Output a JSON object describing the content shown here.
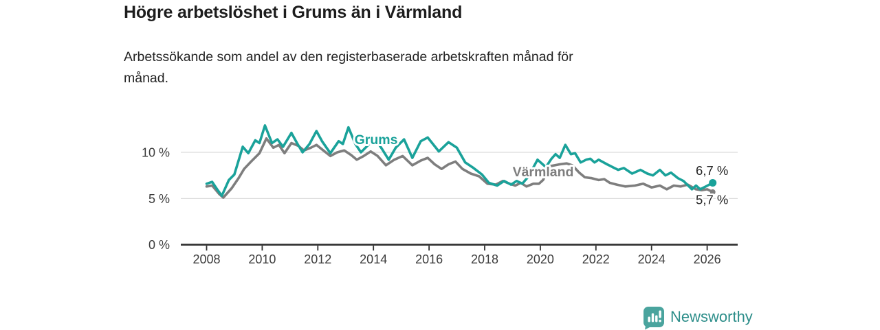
{
  "header": {
    "title": "Högre arbetslöshet i Grums än i Värmland",
    "subtitle_line1": "Arbetssökande som andel av den registerbaserade arbetskraften månad för",
    "subtitle_line2": "månad."
  },
  "footer": {
    "brand": "Newsworthy",
    "logo_icon": "bar-chart-speech-bubble-icon",
    "brand_color": "#2d8e8a",
    "icon_color": "#4aa49e"
  },
  "chart_data": {
    "type": "line",
    "title": "Högre arbetslöshet i Grums än i Värmland",
    "subtitle": "Arbetssökande som andel av den registerbaserade arbetskraften månad för månad.",
    "xlabel": "",
    "ylabel": "",
    "x_range": [
      2007.1,
      2027.1
    ],
    "ylim": [
      0,
      13.9
    ],
    "grid": "horizontal",
    "legend_position": "inline-labels",
    "x_ticks": [
      2008,
      2010,
      2012,
      2014,
      2016,
      2018,
      2020,
      2022,
      2024,
      2026
    ],
    "y_ticks": [
      {
        "value": 0,
        "label": "0 %"
      },
      {
        "value": 5,
        "label": "5 %"
      },
      {
        "value": 10,
        "label": "10 %"
      }
    ],
    "series": [
      {
        "name": "Grums",
        "color": "#1aa29a",
        "end_label": "6,7 %",
        "end_value": 6.7,
        "points": [
          [
            2008.0,
            6.6
          ],
          [
            2008.2,
            6.8
          ],
          [
            2008.4,
            5.9
          ],
          [
            2008.55,
            5.3
          ],
          [
            2008.8,
            7.0
          ],
          [
            2009.0,
            7.6
          ],
          [
            2009.3,
            10.6
          ],
          [
            2009.5,
            9.9
          ],
          [
            2009.75,
            11.3
          ],
          [
            2009.9,
            11.0
          ],
          [
            2010.1,
            12.9
          ],
          [
            2010.35,
            11.0
          ],
          [
            2010.55,
            11.4
          ],
          [
            2010.75,
            10.6
          ],
          [
            2011.05,
            12.1
          ],
          [
            2011.25,
            11.0
          ],
          [
            2011.45,
            10.0
          ],
          [
            2011.7,
            10.9
          ],
          [
            2011.95,
            12.3
          ],
          [
            2012.15,
            11.2
          ],
          [
            2012.45,
            9.9
          ],
          [
            2012.75,
            11.2
          ],
          [
            2012.9,
            10.9
          ],
          [
            2013.1,
            12.7
          ],
          [
            2013.35,
            10.9
          ],
          [
            2013.55,
            10.0
          ],
          [
            2013.85,
            10.9
          ],
          [
            2014.1,
            11.3
          ],
          [
            2014.3,
            10.4
          ],
          [
            2014.55,
            9.2
          ],
          [
            2014.8,
            10.5
          ],
          [
            2015.1,
            11.4
          ],
          [
            2015.4,
            9.4
          ],
          [
            2015.7,
            11.2
          ],
          [
            2015.95,
            11.6
          ],
          [
            2016.35,
            10.1
          ],
          [
            2016.7,
            11.1
          ],
          [
            2017.0,
            10.5
          ],
          [
            2017.3,
            8.9
          ],
          [
            2017.6,
            8.3
          ],
          [
            2017.9,
            7.6
          ],
          [
            2018.15,
            6.7
          ],
          [
            2018.45,
            6.4
          ],
          [
            2018.7,
            6.9
          ],
          [
            2018.95,
            6.5
          ],
          [
            2019.15,
            6.9
          ],
          [
            2019.35,
            6.6
          ],
          [
            2019.55,
            7.3
          ],
          [
            2019.7,
            8.1
          ],
          [
            2019.9,
            9.2
          ],
          [
            2020.2,
            8.4
          ],
          [
            2020.4,
            9.3
          ],
          [
            2020.55,
            9.8
          ],
          [
            2020.7,
            9.4
          ],
          [
            2020.9,
            10.8
          ],
          [
            2021.1,
            9.8
          ],
          [
            2021.25,
            9.9
          ],
          [
            2021.45,
            8.9
          ],
          [
            2021.65,
            9.2
          ],
          [
            2021.8,
            9.3
          ],
          [
            2021.95,
            8.9
          ],
          [
            2022.1,
            9.2
          ],
          [
            2022.4,
            8.7
          ],
          [
            2022.6,
            8.4
          ],
          [
            2022.8,
            8.1
          ],
          [
            2023.0,
            8.3
          ],
          [
            2023.3,
            7.7
          ],
          [
            2023.6,
            8.1
          ],
          [
            2023.85,
            7.7
          ],
          [
            2024.05,
            7.5
          ],
          [
            2024.3,
            8.1
          ],
          [
            2024.5,
            7.5
          ],
          [
            2024.7,
            7.8
          ],
          [
            2024.95,
            7.2
          ],
          [
            2025.15,
            6.9
          ],
          [
            2025.45,
            6.0
          ],
          [
            2025.6,
            6.4
          ],
          [
            2025.75,
            6.0
          ],
          [
            2025.95,
            6.3
          ],
          [
            2026.2,
            6.7
          ]
        ]
      },
      {
        "name": "Värmland",
        "color": "#7e7e7e",
        "end_label": "5,7 %",
        "end_value": 5.7,
        "points": [
          [
            2008.0,
            6.3
          ],
          [
            2008.2,
            6.4
          ],
          [
            2008.45,
            5.5
          ],
          [
            2008.6,
            5.1
          ],
          [
            2008.9,
            6.1
          ],
          [
            2009.15,
            7.2
          ],
          [
            2009.35,
            8.2
          ],
          [
            2009.6,
            9.0
          ],
          [
            2009.9,
            9.9
          ],
          [
            2010.15,
            11.5
          ],
          [
            2010.4,
            10.5
          ],
          [
            2010.6,
            10.8
          ],
          [
            2010.8,
            9.9
          ],
          [
            2011.05,
            11.0
          ],
          [
            2011.3,
            10.7
          ],
          [
            2011.5,
            10.2
          ],
          [
            2011.75,
            10.5
          ],
          [
            2011.95,
            10.8
          ],
          [
            2012.2,
            10.2
          ],
          [
            2012.45,
            9.6
          ],
          [
            2012.7,
            10.0
          ],
          [
            2012.95,
            10.2
          ],
          [
            2013.2,
            9.7
          ],
          [
            2013.4,
            9.2
          ],
          [
            2013.65,
            9.6
          ],
          [
            2013.9,
            10.1
          ],
          [
            2014.15,
            9.6
          ],
          [
            2014.45,
            8.6
          ],
          [
            2014.75,
            9.2
          ],
          [
            2015.05,
            9.6
          ],
          [
            2015.4,
            8.6
          ],
          [
            2015.7,
            9.1
          ],
          [
            2015.95,
            9.4
          ],
          [
            2016.2,
            8.7
          ],
          [
            2016.45,
            8.2
          ],
          [
            2016.7,
            8.7
          ],
          [
            2016.95,
            9.0
          ],
          [
            2017.2,
            8.2
          ],
          [
            2017.5,
            7.7
          ],
          [
            2017.8,
            7.4
          ],
          [
            2018.1,
            6.6
          ],
          [
            2018.4,
            6.5
          ],
          [
            2018.65,
            6.9
          ],
          [
            2018.9,
            6.6
          ],
          [
            2019.1,
            6.4
          ],
          [
            2019.3,
            6.7
          ],
          [
            2019.5,
            6.3
          ],
          [
            2019.75,
            6.6
          ],
          [
            2019.95,
            6.6
          ],
          [
            2020.1,
            7.0
          ],
          [
            2020.35,
            8.5
          ],
          [
            2020.7,
            8.7
          ],
          [
            2020.95,
            8.8
          ],
          [
            2021.15,
            8.6
          ],
          [
            2021.4,
            7.8
          ],
          [
            2021.6,
            7.3
          ],
          [
            2021.85,
            7.2
          ],
          [
            2022.1,
            7.0
          ],
          [
            2022.3,
            7.1
          ],
          [
            2022.5,
            6.7
          ],
          [
            2022.75,
            6.5
          ],
          [
            2023.05,
            6.3
          ],
          [
            2023.4,
            6.4
          ],
          [
            2023.7,
            6.6
          ],
          [
            2024.0,
            6.2
          ],
          [
            2024.3,
            6.4
          ],
          [
            2024.55,
            6.0
          ],
          [
            2024.8,
            6.4
          ],
          [
            2025.05,
            6.3
          ],
          [
            2025.3,
            6.5
          ],
          [
            2025.6,
            6.0
          ],
          [
            2025.8,
            5.9
          ],
          [
            2026.0,
            6.0
          ],
          [
            2026.2,
            5.7
          ]
        ]
      }
    ]
  }
}
